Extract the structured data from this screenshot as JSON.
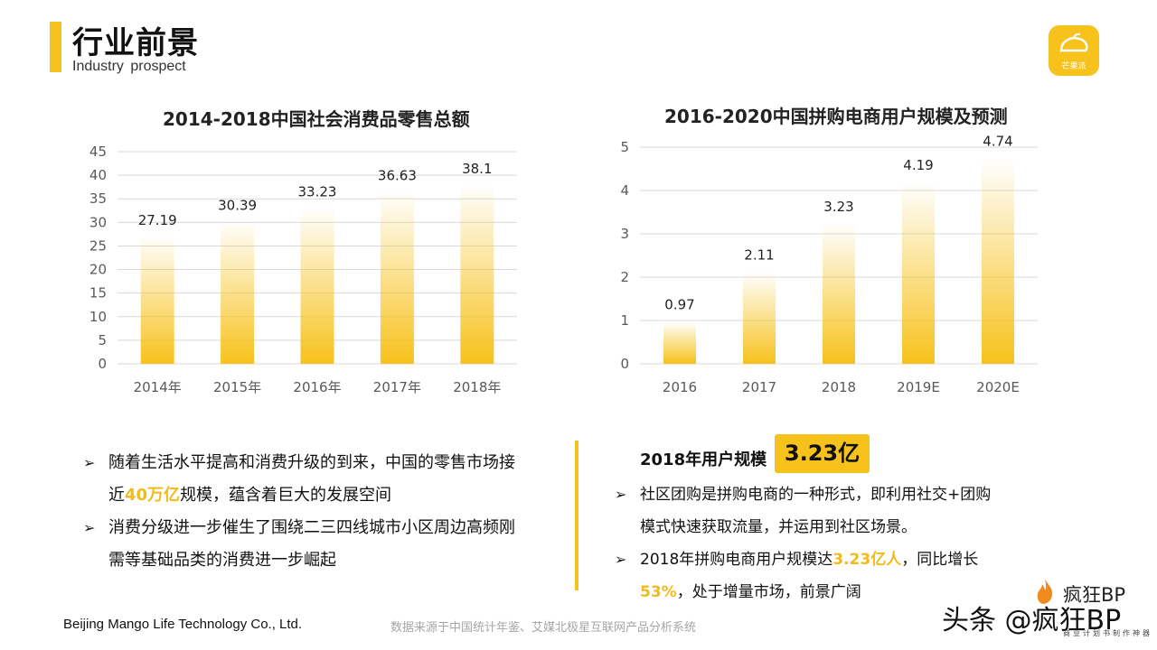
{
  "header": {
    "title": "行业前景",
    "subtitle": "Industry  prospect",
    "logo_text": "芒果派"
  },
  "chart_data": [
    {
      "type": "bar",
      "title": "2014-2018中国社会消费品零售总额",
      "categories": [
        "2014年",
        "2015年",
        "2016年",
        "2017年",
        "2018年"
      ],
      "values": [
        27.19,
        30.39,
        33.23,
        36.63,
        38.1
      ],
      "value_labels": [
        "27.19",
        "30.39",
        "33.23",
        "36.63",
        "38.1"
      ],
      "ylim": [
        0,
        45
      ],
      "yticks": [
        0,
        5,
        10,
        15,
        20,
        25,
        30,
        35,
        40,
        45
      ],
      "grid": true,
      "bar_color": "#f7c21b"
    },
    {
      "type": "bar",
      "title": "2016-2020中国拼购电商用户规模及预测",
      "categories": [
        "2016",
        "2017",
        "2018",
        "2019E",
        "2020E"
      ],
      "values": [
        0.97,
        2.11,
        3.23,
        4.19,
        4.74
      ],
      "value_labels": [
        "0.97",
        "2.11",
        "3.23",
        "4.19",
        "4.74"
      ],
      "ylim": [
        0,
        5
      ],
      "yticks": [
        0,
        1,
        2,
        3,
        4,
        5
      ],
      "grid": true,
      "bar_color": "#f7c21b"
    }
  ],
  "left_bullets": [
    {
      "parts": [
        "随着生活水平提高和消费升级的到来，中国的零售市场接近",
        "40万亿",
        "规模，蕴含着巨大的发展空间"
      ]
    },
    {
      "parts": [
        "消费分级进一步催生了围绕二三四线城市小区周边高频刚需等基础品类的消费进一步崛起"
      ]
    }
  ],
  "stat": {
    "label": "2018年用户规模",
    "value": "3.23亿"
  },
  "right_bullets": [
    {
      "parts": [
        "社区团购是拼购电商的一种形式，即利用社交+团购模式快速获取流量，并运用到社区场景。"
      ]
    },
    {
      "parts": [
        "2018年拼购电商用户规模达",
        "3.23亿人",
        "，同比增长",
        "53%",
        "，处于增量市场，前景广阔"
      ]
    }
  ],
  "footer": {
    "company": "Beijing Mango Life Technology  Co., Ltd.",
    "source": "数据来源于中国统计年鉴、艾媒北极星互联网产品分析系统"
  },
  "watermark": {
    "brand": "疯狂BP",
    "tagline": "商业计划书制作神器",
    "toutiao": "头条 @疯狂BP"
  }
}
